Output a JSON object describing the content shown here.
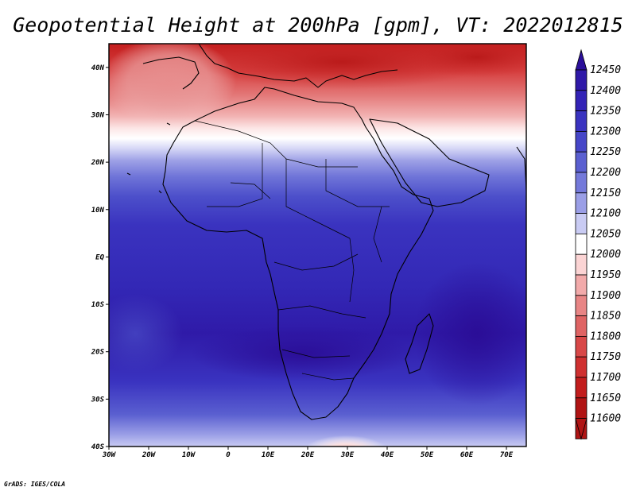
{
  "title": "Geopotential Height at 200hPa [gpm], VT: 2022012815",
  "credit": "GrADS: IGES/COLA",
  "map": {
    "lat_ticks": [
      "40N",
      "30N",
      "20N",
      "10N",
      "EQ",
      "10S",
      "20S",
      "30S",
      "40S"
    ],
    "lon_ticks": [
      "30W",
      "20W",
      "10W",
      "0",
      "10E",
      "20E",
      "30E",
      "40E",
      "50E",
      "60E",
      "70E"
    ],
    "lon_range": [
      -30,
      75
    ],
    "lat_range": [
      -40,
      45
    ]
  },
  "colorbar": {
    "levels": [
      "12450",
      "12400",
      "12350",
      "12300",
      "12250",
      "12200",
      "12150",
      "12100",
      "12050",
      "12000",
      "11950",
      "11900",
      "11850",
      "11800",
      "11750",
      "11700",
      "11650",
      "11600"
    ],
    "colors": [
      "#2b0f9a",
      "#2f19a8",
      "#3323b6",
      "#3a33c0",
      "#4646c8",
      "#5a5fd0",
      "#7479da",
      "#9a9ee6",
      "#c9cbf3",
      "#ffffff",
      "#fbd4d4",
      "#f2aaaa",
      "#e88585",
      "#df6464",
      "#d84848",
      "#cf3030",
      "#c21d1d",
      "#b01414"
    ]
  },
  "chart_data": {
    "type": "heatmap",
    "variable": "Geopotential Height at 200hPa",
    "units": "gpm",
    "valid_time": "2022012815",
    "x_range": [
      -30,
      75
    ],
    "y_range": [
      -40,
      45
    ],
    "contour_levels": [
      11600,
      11650,
      11700,
      11750,
      11800,
      11850,
      11900,
      11950,
      12000,
      12050,
      12100,
      12150,
      12200,
      12250,
      12300,
      12350,
      12400,
      12450
    ]
  }
}
